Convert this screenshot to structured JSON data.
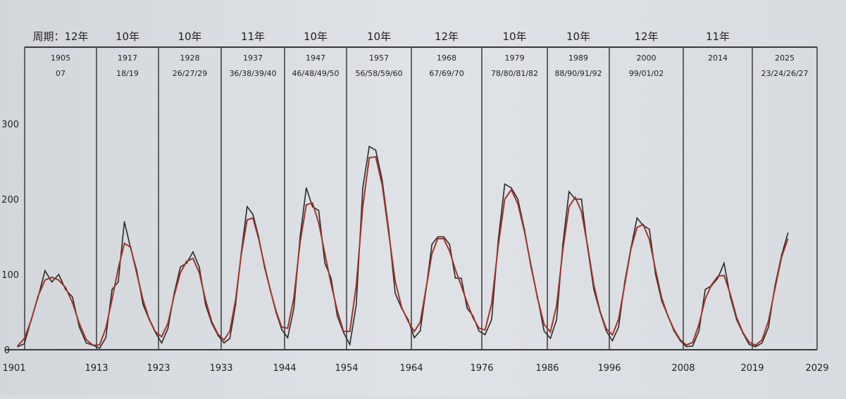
{
  "chart_data": {
    "type": "line",
    "title": "",
    "xlabel": "",
    "ylabel": "",
    "xlim": [
      1901,
      2029
    ],
    "ylim": [
      0,
      390
    ],
    "y_ticks": [
      0,
      100,
      200,
      300
    ],
    "x_ticks": [
      1901,
      1913,
      1923,
      1933,
      1944,
      1954,
      1964,
      1976,
      1986,
      1996,
      2008,
      2019,
      2029
    ],
    "grid": false,
    "colors": {
      "raw": "#2a2a2a",
      "smoothed": "#a0352c",
      "frame": "#3a3a3a"
    },
    "cycle_prefix": "周期：",
    "cycles": [
      {
        "length": "12年",
        "peak": "1905",
        "years": "07",
        "start": 1901,
        "end": 1913
      },
      {
        "length": "10年",
        "peak": "1917",
        "years": "18/19",
        "start": 1913,
        "end": 1923
      },
      {
        "length": "10年",
        "peak": "1928",
        "years": "26/27/29",
        "start": 1923,
        "end": 1933
      },
      {
        "length": "11年",
        "peak": "1937",
        "years": "36/38/39/40",
        "start": 1933,
        "end": 1944
      },
      {
        "length": "10年",
        "peak": "1947",
        "years": "46/48/49/50",
        "start": 1944,
        "end": 1954
      },
      {
        "length": "10年",
        "peak": "1957",
        "years": "56/58/59/60",
        "start": 1954,
        "end": 1964
      },
      {
        "length": "12年",
        "peak": "1968",
        "years": "67/69/70",
        "start": 1964,
        "end": 1976
      },
      {
        "length": "10年",
        "peak": "1979",
        "years": "78/80/81/82",
        "start": 1976,
        "end": 1986
      },
      {
        "length": "10年",
        "peak": "1989",
        "years": "88/90/91/92",
        "start": 1986,
        "end": 1996
      },
      {
        "length": "12年",
        "peak": "2000",
        "years": "99/01/02",
        "start": 1996,
        "end": 2008
      },
      {
        "length": "11年",
        "peak": "2014",
        "years": "",
        "start": 2008,
        "end": 2019
      },
      {
        "length": "",
        "peak": "2025",
        "years": "23/24/26/27",
        "start": 2019,
        "end": 2029
      }
    ],
    "series": [
      {
        "x": [
          1901,
          1902,
          1903,
          1904,
          1905,
          1906,
          1907,
          1908,
          1909,
          1910,
          1911,
          1912,
          1913,
          1914,
          1915,
          1916,
          1917,
          1918,
          1919,
          1920,
          1921,
          1922,
          1923,
          1924,
          1925,
          1926,
          1927,
          1928,
          1929,
          1930,
          1931,
          1932,
          1933,
          1934,
          1935,
          1936,
          1937,
          1938,
          1939,
          1940,
          1941,
          1942,
          1943,
          1944,
          1945,
          1946,
          1947,
          1948,
          1949,
          1950,
          1951,
          1952,
          1953,
          1954,
          1955,
          1956,
          1957,
          1958,
          1959,
          1960,
          1961,
          1962,
          1963,
          1964,
          1965,
          1966,
          1967,
          1968,
          1969,
          1970,
          1971,
          1972,
          1973,
          1974,
          1975,
          1976,
          1977,
          1978,
          1979,
          1980,
          1981,
          1982,
          1983,
          1984,
          1985,
          1986,
          1987,
          1988,
          1989,
          1990,
          1991,
          1992,
          1993,
          1994,
          1995,
          1996,
          1997,
          1998,
          1999,
          2000,
          2001,
          2002,
          2003,
          2004,
          2005,
          2006,
          2007,
          2008,
          2009,
          2010,
          2011,
          2012,
          2013,
          2014,
          2015,
          2016,
          2017,
          2018,
          2019,
          2020,
          2021,
          2022,
          2023,
          2024
        ],
        "y": [
          4,
          8,
          40,
          70,
          105,
          90,
          100,
          80,
          70,
          30,
          9,
          6,
          2,
          16,
          80,
          90,
          170,
          135,
          105,
          60,
          40,
          23,
          9,
          28,
          75,
          110,
          115,
          130,
          110,
          60,
          35,
          19,
          9,
          15,
          60,
          130,
          190,
          180,
          150,
          110,
          80,
          50,
          27,
          16,
          55,
          150,
          215,
          190,
          185,
          115,
          95,
          45,
          23,
          7,
          60,
          215,
          270,
          265,
          225,
          160,
          75,
          55,
          40,
          16,
          25,
          80,
          140,
          150,
          150,
          140,
          95,
          95,
          55,
          45,
          25,
          20,
          40,
          145,
          220,
          215,
          200,
          160,
          110,
          70,
          25,
          15,
          40,
          140,
          210,
          200,
          200,
          135,
          80,
          50,
          25,
          12,
          30,
          90,
          135,
          175,
          165,
          160,
          100,
          65,
          45,
          25,
          12,
          4,
          5,
          25,
          80,
          85,
          95,
          115,
          70,
          40,
          22,
          7,
          4,
          9,
          30,
          85,
          125,
          155
        ]
      }
    ]
  }
}
